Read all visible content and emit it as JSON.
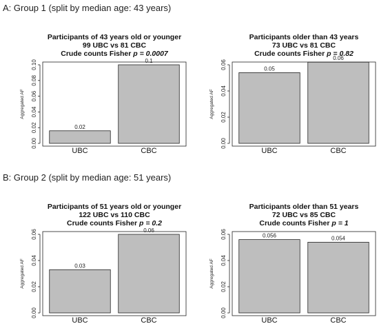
{
  "groups": [
    {
      "heading": "A: Group 1 (split by median age: 43 years)"
    },
    {
      "heading": "B: Group 2 (split by median age: 51 years)"
    }
  ],
  "chart_data": [
    {
      "type": "bar",
      "title_lines": [
        "Participants of 43 years old or younger",
        "99  UBC vs  81  CBC",
        "Crude counts Fisher ",
        "p = 0.0007"
      ],
      "categories": [
        "UBC",
        "CBC"
      ],
      "values": [
        0.016,
        0.1
      ],
      "value_labels": [
        "0.02",
        "0.1"
      ],
      "ylabel": "Aggregated AF",
      "yticks": [
        "0.00",
        "0.02",
        "0.04",
        "0.06",
        "0.08",
        "0.10"
      ],
      "ylim": [
        0,
        0.1
      ],
      "bar_color": "#bebebe"
    },
    {
      "type": "bar",
      "title_lines": [
        "Participants older than 43 years",
        "73  UBC vs  81  CBC",
        "Crude counts Fisher ",
        "p = 0.82"
      ],
      "categories": [
        "UBC",
        "CBC"
      ],
      "values": [
        0.054,
        0.062
      ],
      "value_labels": [
        "0.05",
        "0.06"
      ],
      "ylabel": "Aggregated AF",
      "yticks": [
        "0.00",
        "0.02",
        "0.04",
        "0.06"
      ],
      "ylim": [
        0,
        0.06
      ],
      "bar_color": "#bebebe"
    },
    {
      "type": "bar",
      "title_lines": [
        "Participants of 51 years old or younger",
        "122  UBC vs  110  CBC",
        "Crude counts Fisher ",
        "p = 0.2"
      ],
      "categories": [
        "UBC",
        "CBC"
      ],
      "values": [
        0.033,
        0.06
      ],
      "value_labels": [
        "0.03",
        "0.06"
      ],
      "ylabel": "Aggregated AF",
      "yticks": [
        "0.00",
        "0.02",
        "0.04",
        "0.06"
      ],
      "ylim": [
        0,
        0.06
      ],
      "bar_color": "#bebebe"
    },
    {
      "type": "bar",
      "title_lines": [
        "Participants older than 51 years",
        "72  UBC vs  85  CBC",
        "Crude counts Fisher ",
        "p = 1"
      ],
      "categories": [
        "UBC",
        "CBC"
      ],
      "values": [
        0.056,
        0.054
      ],
      "value_labels": [
        "0.056",
        "0.054"
      ],
      "ylabel": "Aggregated AF",
      "yticks": [
        "0.00",
        "0.02",
        "0.04",
        "0.06"
      ],
      "ylim": [
        0,
        0.06
      ],
      "bar_color": "#bebebe"
    }
  ]
}
